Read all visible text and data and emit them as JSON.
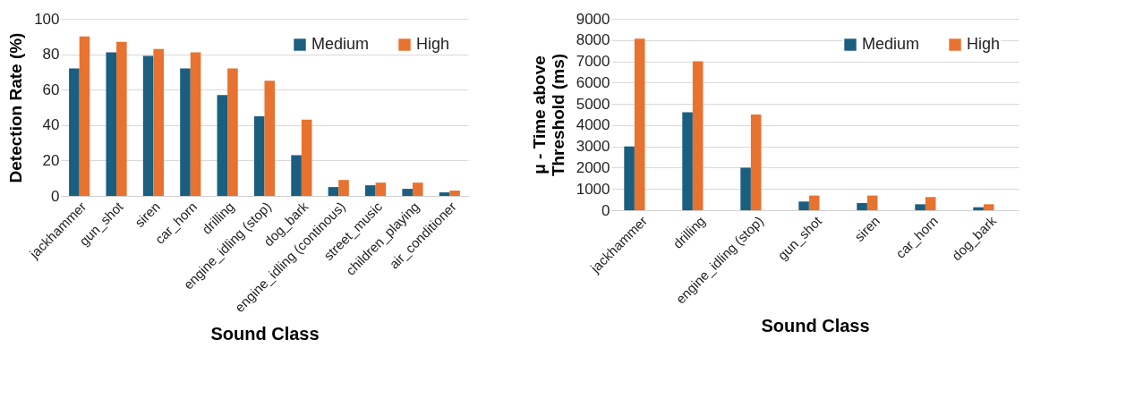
{
  "chart_data": [
    {
      "type": "bar",
      "xlabel": "Sound Class",
      "ylabel": "Detection Rate (%)",
      "categories": [
        "jackhammer",
        "gun_shot",
        "siren",
        "car_horn",
        "drilling",
        "engine_idling (stop)",
        "dog_bark",
        "engine_idling (continous)",
        "street_music",
        "children_playing",
        "air_conditioner"
      ],
      "series": [
        {
          "name": "Medium",
          "color": "#1a5e80",
          "values": [
            72,
            81,
            79,
            72,
            57,
            45,
            23,
            5,
            6,
            4,
            2
          ]
        },
        {
          "name": "High",
          "color": "#e8722f",
          "values": [
            90,
            87,
            83,
            81,
            72,
            65,
            43,
            9,
            7.5,
            7.5,
            3
          ]
        }
      ],
      "ylim": [
        0,
        100
      ],
      "yticks": [
        0,
        20,
        40,
        60,
        80,
        100
      ],
      "grid": "y",
      "legend": "top right"
    },
    {
      "type": "bar",
      "xlabel": "Sound Class",
      "ylabel": "μ - Time above\nThreshold (ms)",
      "categories": [
        "jackhammer",
        "drilling",
        "engine_idling (stop)",
        "gun_shot",
        "siren",
        "car_horn",
        "dog_bark"
      ],
      "series": [
        {
          "name": "Medium",
          "color": "#1a5e80",
          "values": [
            3000,
            4600,
            2000,
            410,
            340,
            280,
            140
          ]
        },
        {
          "name": "High",
          "color": "#e8722f",
          "values": [
            8060,
            7000,
            4500,
            690,
            690,
            620,
            280
          ]
        }
      ],
      "ylim": [
        0,
        9000
      ],
      "yticks": [
        0,
        1000,
        2000,
        3000,
        4000,
        5000,
        6000,
        7000,
        8000,
        9000
      ],
      "grid": "y",
      "legend": "top right"
    }
  ]
}
